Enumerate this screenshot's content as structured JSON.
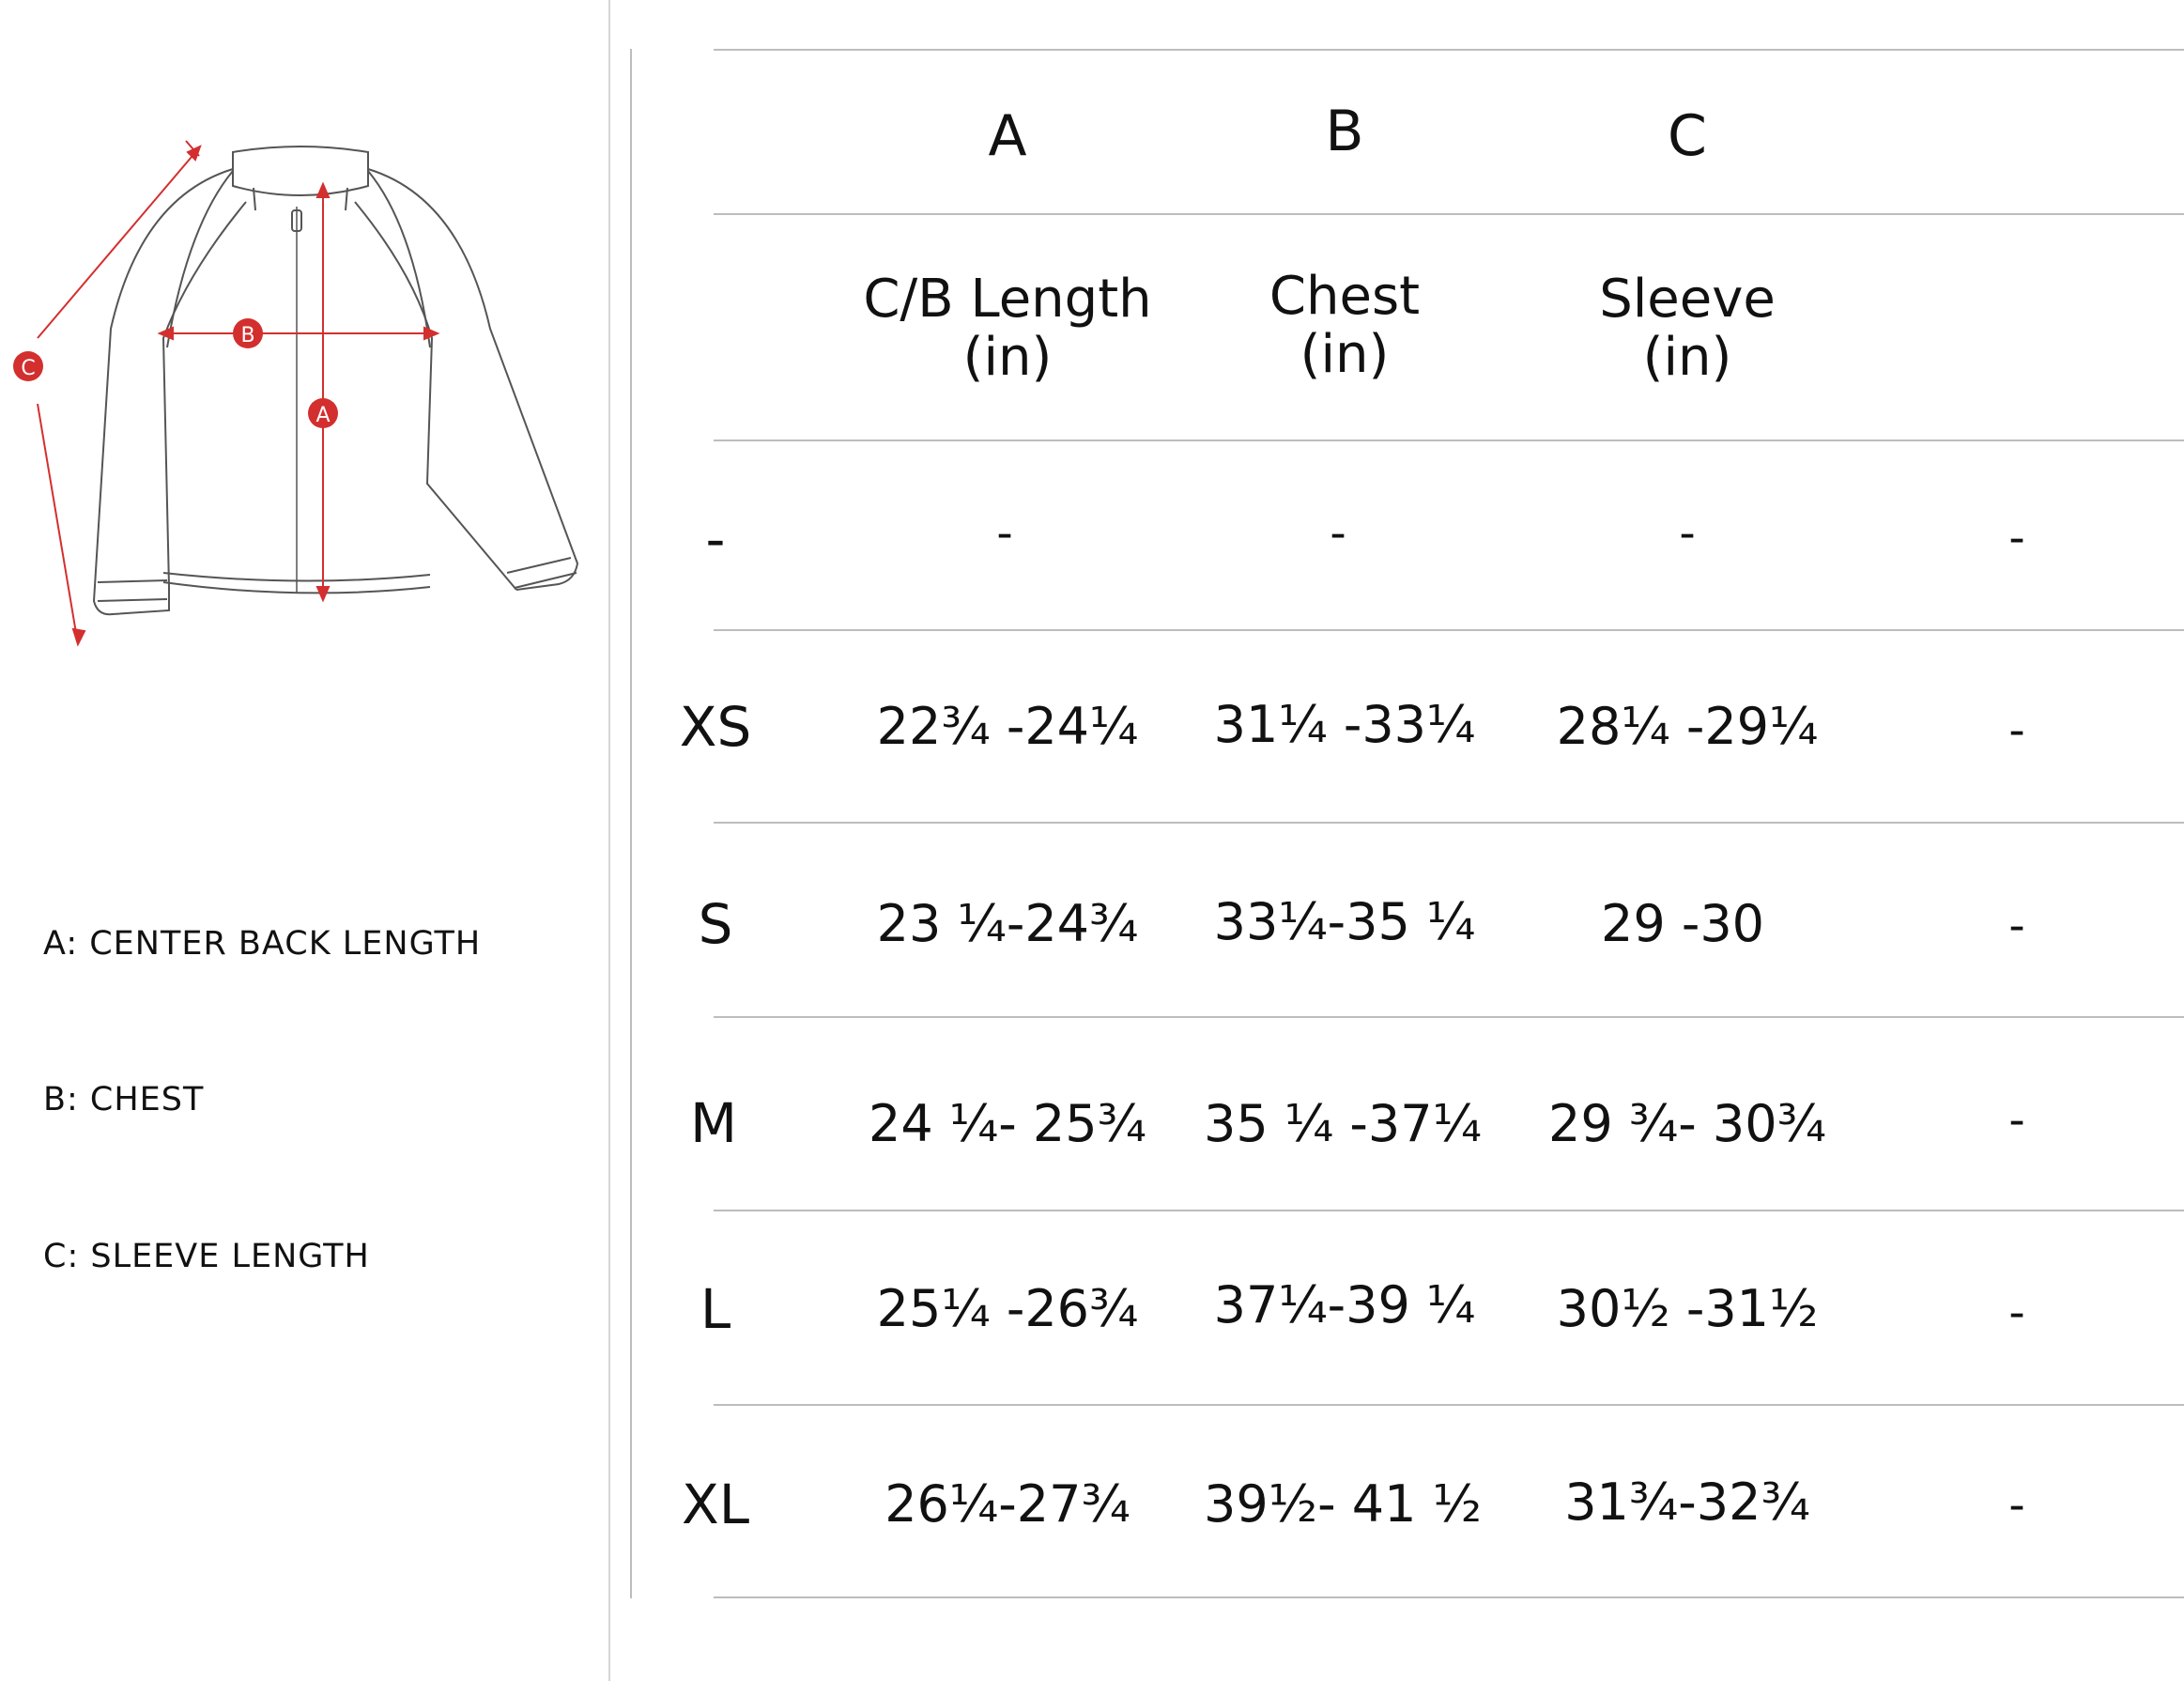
{
  "legend": {
    "a": "A:  CENTER BACK LENGTH",
    "b": "B:  CHEST",
    "c": "C:  SLEEVE LENGTH"
  },
  "diagram": {
    "marker_a": "A",
    "marker_b": "B",
    "marker_c": "C",
    "marker_color": "#d32f2f",
    "icon": "jacket-outline-icon"
  },
  "table": {
    "column_letters": [
      "A",
      "B",
      "C"
    ],
    "column_titles": [
      {
        "line1": "C/B Length",
        "line2": "(in)"
      },
      {
        "line1": "Chest",
        "line2": "(in)"
      },
      {
        "line1": "Sleeve",
        "line2": "(in)"
      }
    ],
    "rows": [
      {
        "size": "-",
        "a": "-",
        "b": "-",
        "c": "-",
        "extra": "-"
      },
      {
        "size": "XS",
        "a": "22¾ -24¼",
        "b": "31¼ -33¼",
        "c": "28¼ -29¼",
        "extra": "-"
      },
      {
        "size": "S",
        "a": "23 ¼-24¾",
        "b": "33¼-35 ¼",
        "c": "29 -30",
        "extra": "-"
      },
      {
        "size": "M",
        "a": "24 ¼- 25¾",
        "b": "35 ¼ -37¼",
        "c": "29 ¾- 30¾",
        "extra": "-"
      },
      {
        "size": "L",
        "a": "25¼ -26¾",
        "b": "37¼-39 ¼",
        "c": "30½ -31½",
        "extra": "-"
      },
      {
        "size": "XL",
        "a": "26¼-27¾",
        "b": "39½- 41 ½",
        "c": "31¾-32¾",
        "extra": "-"
      }
    ]
  }
}
